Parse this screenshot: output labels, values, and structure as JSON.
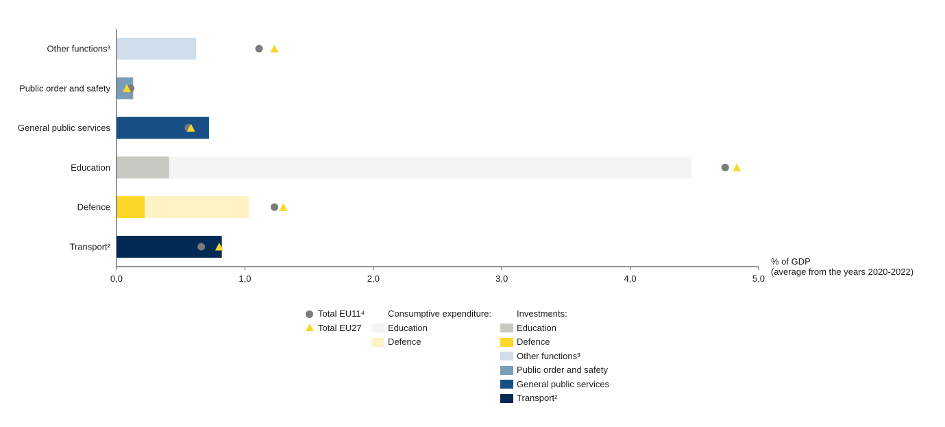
{
  "chart_data": {
    "type": "bar",
    "orientation": "horizontal",
    "stacked": true,
    "categories": [
      "Other functions³",
      "Public order and safety",
      "General public services",
      "Education",
      "Defence",
      "Transport²"
    ],
    "series": [
      {
        "name": "Education",
        "group": "Investments",
        "color": "#cac8c3",
        "values": [
          0,
          0,
          0,
          0.41,
          0,
          0
        ]
      },
      {
        "name": "Education",
        "group": "Consumptive expenditure",
        "color": "#f4f4f3",
        "values": [
          0,
          0,
          0,
          4.07,
          0,
          0
        ]
      },
      {
        "name": "Defence",
        "group": "Investments",
        "color": "#fbd829",
        "values": [
          0,
          0,
          0,
          0,
          0.22,
          0
        ]
      },
      {
        "name": "Defence",
        "group": "Consumptive expenditure",
        "color": "#fff2c4",
        "values": [
          0,
          0,
          0,
          0,
          0.81,
          0
        ]
      },
      {
        "name": "Other functions³",
        "group": "Investments",
        "color": "#cfdeea",
        "values": [
          0.62,
          0,
          0,
          0,
          0,
          0
        ]
      },
      {
        "name": "Public order and safety",
        "group": "Investments",
        "color": "#7b9cb6",
        "values": [
          0,
          0.13,
          0,
          0,
          0,
          0
        ]
      },
      {
        "name": "General public services",
        "group": "Investments",
        "color": "#174f86",
        "values": [
          0,
          0,
          0.72,
          0,
          0,
          0
        ]
      },
      {
        "name": "Transport²",
        "group": "Investments",
        "color": "#022a52",
        "values": [
          0,
          0,
          0,
          0,
          0,
          0.82
        ]
      }
    ],
    "markers": [
      {
        "name": "Total EU11⁴",
        "shape": "circle",
        "color": "#7b7b7b",
        "values": [
          1.11,
          0.11,
          0.56,
          4.74,
          1.23,
          0.66
        ]
      },
      {
        "name": "Total EU27",
        "shape": "triangle",
        "color": "#fbd829",
        "values": [
          1.23,
          0.08,
          0.58,
          4.83,
          1.3,
          0.8
        ]
      }
    ],
    "xlim": [
      0,
      5
    ],
    "xticks": [
      0,
      1,
      2,
      3,
      4,
      5
    ],
    "xtick_labels": [
      "0,0",
      "1,0",
      "2,0",
      "3,0",
      "4,0",
      "5,0"
    ],
    "xlabel": [
      "% of GDP",
      "(average from the years 2020-2022)"
    ],
    "ylabel": "",
    "title": "",
    "legend_position": "bottom-center"
  },
  "legend": {
    "markers": [
      {
        "label": "Total EU11⁴",
        "shape": "circle",
        "color": "#7b7b7b"
      },
      {
        "label": "Total EU27",
        "shape": "triangle",
        "color": "#fbd829"
      }
    ],
    "consumptive_heading": "Consumptive expenditure:",
    "consumptive": [
      {
        "label": "Education",
        "color": "#f4f4f3"
      },
      {
        "label": "Defence",
        "color": "#fff2c4"
      }
    ],
    "investments_heading": "Investments:",
    "investments": [
      {
        "label": "Education",
        "color": "#cac8c3"
      },
      {
        "label": "Defence",
        "color": "#fbd829"
      },
      {
        "label": "Other functions³",
        "color": "#cfdeea"
      },
      {
        "label": "Public order and safety",
        "color": "#7b9cb6"
      },
      {
        "label": "General public services",
        "color": "#174f86"
      },
      {
        "label": "Transport²",
        "color": "#022a52"
      }
    ]
  }
}
